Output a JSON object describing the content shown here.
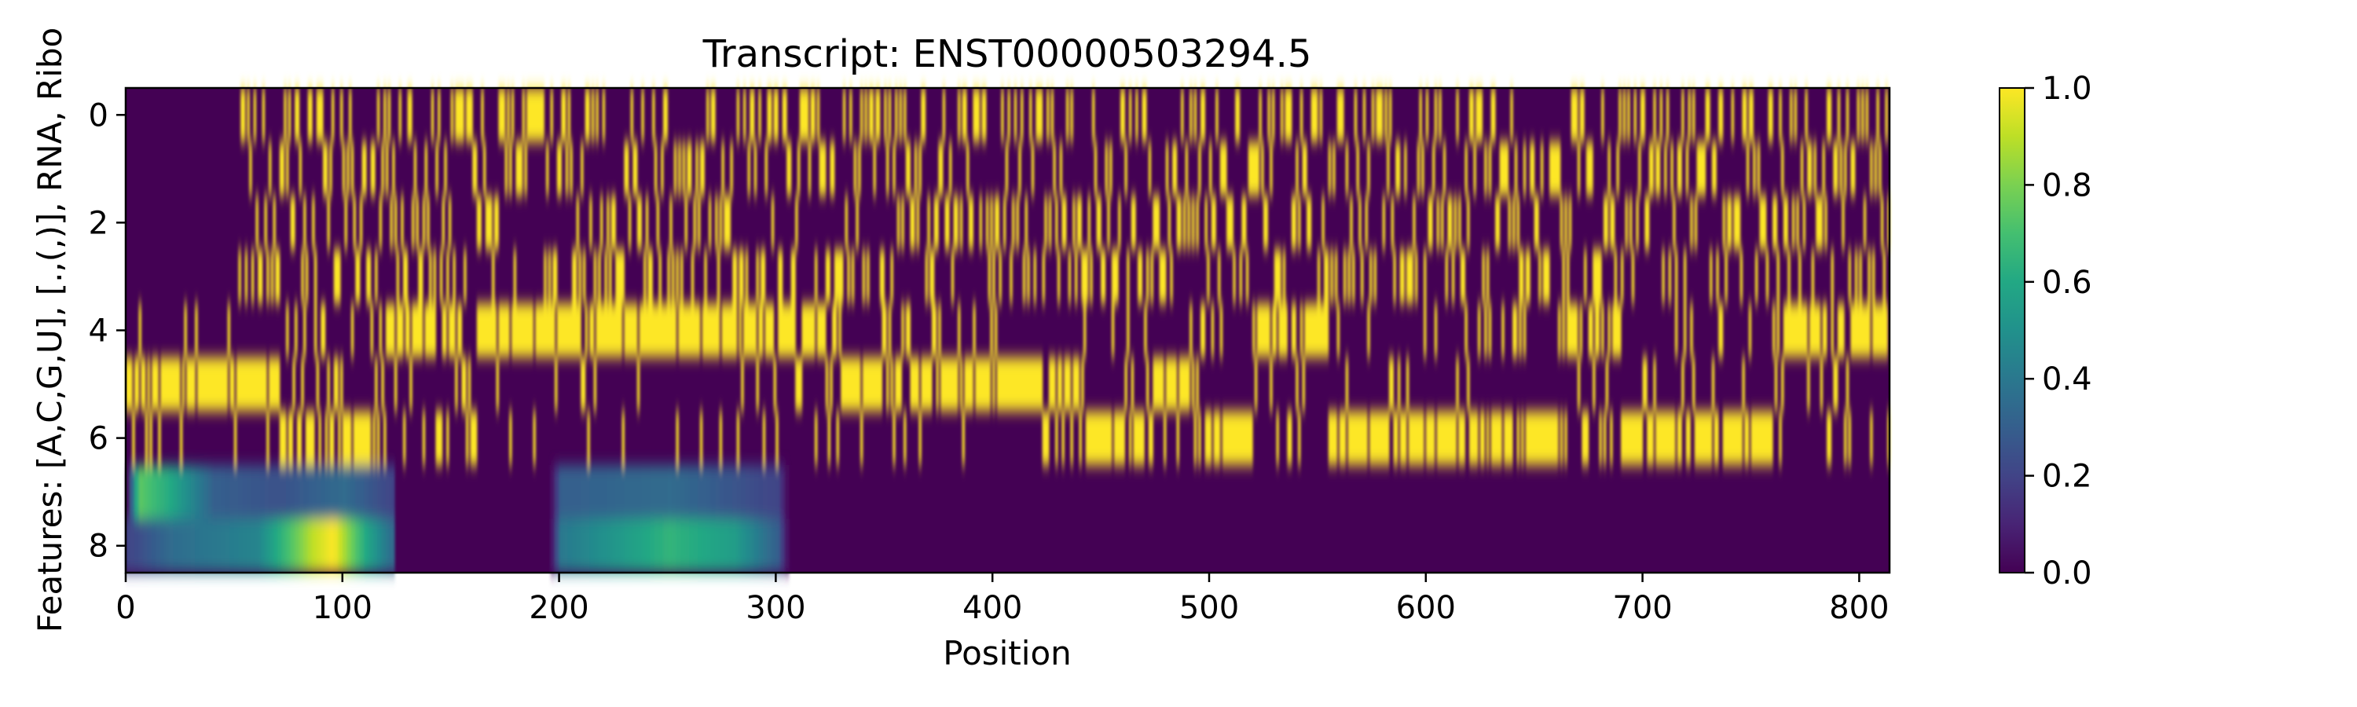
{
  "chart_data": {
    "type": "heatmap",
    "title": "Transcript: ENST00000503294.5",
    "xlabel": "Position",
    "ylabel": "Features: [A,C,G,U], [.,(,)], RNA, Ribo",
    "x_range": [
      0,
      814
    ],
    "y_range": [
      -0.5,
      8.5
    ],
    "x_ticks": [
      0,
      100,
      200,
      300,
      400,
      500,
      600,
      700,
      800
    ],
    "y_ticks": [
      0,
      2,
      4,
      6,
      8
    ],
    "x_tick_labels": [
      "0",
      "100",
      "200",
      "300",
      "400",
      "500",
      "600",
      "700",
      "800"
    ],
    "y_tick_labels": [
      "0",
      "2",
      "4",
      "6",
      "8"
    ],
    "colormap": "viridis",
    "vmin": 0,
    "vmax": 1,
    "colorbar_ticks": [
      0.0,
      0.2,
      0.4,
      0.6,
      0.8,
      1.0
    ],
    "colorbar_tick_labels": [
      "0.0",
      "0.2",
      "0.4",
      "0.6",
      "0.8",
      "1.0"
    ],
    "features": {
      "nucleotide_rows": [
        0,
        1,
        2,
        3
      ],
      "structure_rows": [
        4,
        5,
        6
      ],
      "rna_row": 7,
      "ribo_row": 8
    },
    "structure_segments": [
      {
        "state": 5,
        "start": 0,
        "end": 68
      },
      {
        "state": 6,
        "start": 68,
        "end": 120
      },
      {
        "state": 4,
        "start": 120,
        "end": 330
      },
      {
        "state": 5,
        "start": 330,
        "end": 440
      },
      {
        "state": 6,
        "start": 440,
        "end": 470
      },
      {
        "state": 5,
        "start": 470,
        "end": 495
      },
      {
        "state": 6,
        "start": 495,
        "end": 520
      },
      {
        "state": 4,
        "start": 520,
        "end": 555
      },
      {
        "state": 6,
        "start": 555,
        "end": 665
      },
      {
        "state": 4,
        "start": 665,
        "end": 690
      },
      {
        "state": 6,
        "start": 690,
        "end": 760
      },
      {
        "state": 4,
        "start": 760,
        "end": 814
      }
    ],
    "rna_signal": [
      {
        "x": 0,
        "value": 0.05
      },
      {
        "x": 5,
        "value": 0.75
      },
      {
        "x": 20,
        "value": 0.6
      },
      {
        "x": 40,
        "value": 0.3
      },
      {
        "x": 70,
        "value": 0.25
      },
      {
        "x": 100,
        "value": 0.35
      },
      {
        "x": 122,
        "value": 0.2
      },
      {
        "x": 124,
        "value": 0.0
      },
      {
        "x": 195,
        "value": 0.0
      },
      {
        "x": 200,
        "value": 0.3
      },
      {
        "x": 250,
        "value": 0.35
      },
      {
        "x": 300,
        "value": 0.2
      },
      {
        "x": 305,
        "value": 0.0
      },
      {
        "x": 814,
        "value": 0.0
      }
    ],
    "ribo_signal": [
      {
        "x": 0,
        "value": 0.2
      },
      {
        "x": 20,
        "value": 0.35
      },
      {
        "x": 60,
        "value": 0.45
      },
      {
        "x": 85,
        "value": 0.9
      },
      {
        "x": 95,
        "value": 1.0
      },
      {
        "x": 110,
        "value": 0.6
      },
      {
        "x": 122,
        "value": 0.35
      },
      {
        "x": 124,
        "value": 0.0
      },
      {
        "x": 195,
        "value": 0.0
      },
      {
        "x": 200,
        "value": 0.4
      },
      {
        "x": 230,
        "value": 0.55
      },
      {
        "x": 250,
        "value": 0.65
      },
      {
        "x": 280,
        "value": 0.55
      },
      {
        "x": 300,
        "value": 0.3
      },
      {
        "x": 305,
        "value": 0.0
      },
      {
        "x": 814,
        "value": 0.0
      }
    ]
  }
}
